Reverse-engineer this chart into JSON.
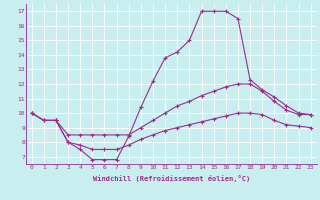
{
  "title": "",
  "xlabel": "Windchill (Refroidissement éolien,°C)",
  "ylabel": "",
  "background_color": "#c8eef0",
  "line_color": "#9b2d8e",
  "xlim": [
    -0.5,
    23.5
  ],
  "ylim": [
    6.5,
    17.5
  ],
  "yticks": [
    7,
    8,
    9,
    10,
    11,
    12,
    13,
    14,
    15,
    16,
    17
  ],
  "xticks": [
    0,
    1,
    2,
    3,
    4,
    5,
    6,
    7,
    8,
    9,
    10,
    11,
    12,
    13,
    14,
    15,
    16,
    17,
    18,
    19,
    20,
    21,
    22,
    23
  ],
  "series": [
    [
      10.0,
      9.5,
      9.5,
      8.0,
      7.5,
      6.8,
      6.8,
      6.8,
      8.4,
      10.4,
      12.2,
      13.8,
      14.2,
      15.0,
      17.0,
      17.0,
      17.0,
      16.5,
      12.3,
      11.6,
      11.1,
      10.5,
      10.0,
      9.9
    ],
    [
      10.0,
      9.5,
      9.5,
      8.5,
      8.5,
      8.5,
      8.5,
      8.5,
      8.5,
      9.0,
      9.5,
      10.0,
      10.5,
      10.8,
      11.2,
      11.5,
      11.8,
      12.0,
      12.0,
      11.5,
      10.8,
      10.2,
      9.9,
      9.9
    ],
    [
      10.0,
      9.5,
      9.5,
      8.0,
      7.8,
      7.5,
      7.5,
      7.5,
      7.8,
      8.2,
      8.5,
      8.8,
      9.0,
      9.2,
      9.4,
      9.6,
      9.8,
      10.0,
      10.0,
      9.9,
      9.5,
      9.2,
      9.1,
      9.0
    ]
  ]
}
